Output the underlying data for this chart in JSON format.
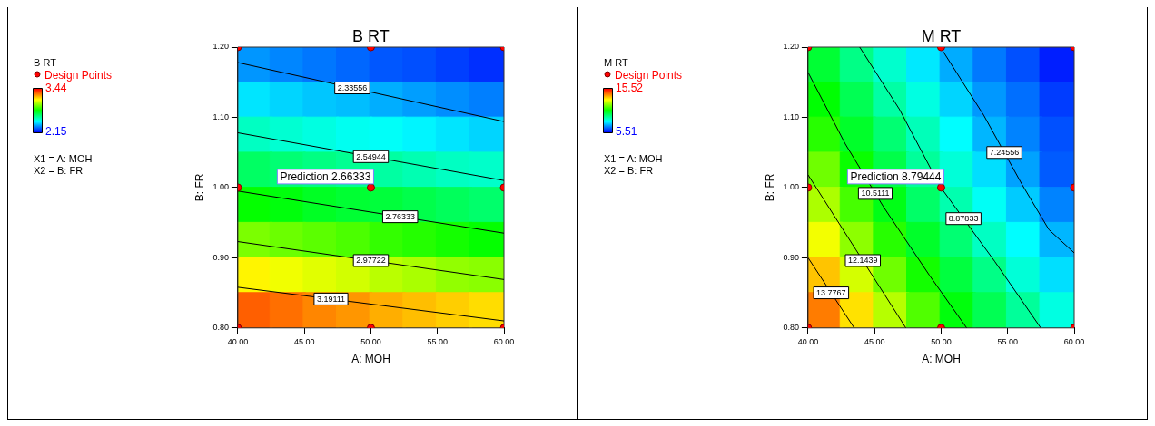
{
  "chart_data": [
    {
      "type": "scatter",
      "title": "B RT",
      "xlabel": "A: MOH",
      "ylabel": "B: FR",
      "clabel": "B RT",
      "legend": "left",
      "grid": false,
      "xlim": [
        40,
        60
      ],
      "ylim": [
        0.8,
        1.2
      ],
      "xticks": [
        {
          "value": 40,
          "label": "40.00"
        },
        {
          "value": 45,
          "label": "45.00"
        },
        {
          "value": 50,
          "label": "50.00"
        },
        {
          "value": 55,
          "label": "55.00"
        },
        {
          "value": 60,
          "label": "60.00"
        }
      ],
      "yticks": [
        {
          "value": 0.8,
          "label": "0.80"
        },
        {
          "value": 0.9,
          "label": "0.90"
        },
        {
          "value": 1.0,
          "label": "1.00"
        },
        {
          "value": 1.1,
          "label": "1.10"
        },
        {
          "value": 1.2,
          "label": "1.20"
        }
      ],
      "clim": [
        2.15,
        3.44
      ],
      "cticks": [
        2.15,
        3.44
      ],
      "series": [
        {
          "type": "scatter",
          "marker": "square",
          "x": [
            41.25,
            43.75,
            46.25,
            48.75,
            51.25,
            53.75,
            56.25,
            58.75,
            41.25,
            43.75,
            46.25,
            48.75,
            51.25,
            53.75,
            56.25,
            58.75,
            41.25,
            43.75,
            46.25,
            48.75,
            51.25,
            53.75,
            56.25,
            58.75,
            41.25,
            43.75,
            46.25,
            48.75,
            51.25,
            53.75,
            56.25,
            58.75,
            41.25,
            43.75,
            46.25,
            48.75,
            51.25,
            53.75,
            56.25,
            58.75,
            41.25,
            43.75,
            46.25,
            48.75,
            51.25,
            53.75,
            56.25,
            58.75,
            41.25,
            43.75,
            46.25,
            48.75,
            51.25,
            53.75,
            56.25,
            58.75,
            41.25,
            43.75,
            46.25,
            48.75,
            51.25,
            53.75,
            56.25,
            58.75
          ],
          "values": [
            1.175,
            1.175,
            1.175,
            1.175,
            1.175,
            1.175,
            1.175,
            1.175,
            1.125,
            1.125,
            1.125,
            1.125,
            1.125,
            1.125,
            1.125,
            1.125,
            1.075,
            1.075,
            1.075,
            1.075,
            1.075,
            1.075,
            1.075,
            1.075,
            1.025,
            1.025,
            1.025,
            1.025,
            1.025,
            1.025,
            1.025,
            1.025,
            0.975,
            0.975,
            0.975,
            0.975,
            0.975,
            0.975,
            0.975,
            0.975,
            0.925,
            0.925,
            0.925,
            0.925,
            0.925,
            0.925,
            0.925,
            0.925,
            0.875,
            0.875,
            0.875,
            0.875,
            0.875,
            0.875,
            0.875,
            0.875,
            0.825,
            0.825,
            0.825,
            0.825,
            0.825,
            0.825,
            0.825,
            0.825
          ],
          "cvalues": [
            2.34,
            2.32,
            2.3,
            2.28,
            2.26,
            2.25,
            2.23,
            2.21,
            2.44,
            2.42,
            2.4,
            2.39,
            2.37,
            2.35,
            2.33,
            2.31,
            2.55,
            2.53,
            2.51,
            2.49,
            2.48,
            2.46,
            2.44,
            2.42,
            2.67,
            2.65,
            2.63,
            2.61,
            2.59,
            2.57,
            2.55,
            2.54,
            2.8,
            2.78,
            2.75,
            2.73,
            2.72,
            2.7,
            2.68,
            2.66,
            2.95,
            2.93,
            2.91,
            2.89,
            2.86,
            2.84,
            2.82,
            2.8,
            3.13,
            3.1,
            3.08,
            3.06,
            3.03,
            3.01,
            2.98,
            2.97,
            3.32,
            3.3,
            3.27,
            3.25,
            3.22,
            3.2,
            3.18,
            3.16
          ],
          "colors": [
            "#0096ff",
            "#0086ff",
            "#0077ff",
            "#0067ff",
            "#0057ff",
            "#004fff",
            "#003fff",
            "#002fff",
            "#00e5ff",
            "#00d5ff",
            "#00c6ff",
            "#00beff",
            "#00aeff",
            "#009eff",
            "#008eff",
            "#007fff",
            "#00ffc2",
            "#00ffd2",
            "#00ffe1",
            "#00fff1",
            "#00fff9",
            "#00f5ff",
            "#00e5ff",
            "#00d5ff",
            "#00ff63",
            "#00ff73",
            "#00ff83",
            "#00ff92",
            "#00ffa2",
            "#00ffb2",
            "#00ffc2",
            "#00ffca",
            "#04ff00",
            "#00ff0c",
            "#00ff24",
            "#00ff34",
            "#00ff3b",
            "#00ff4b",
            "#00ff5b",
            "#00ff6b",
            "#7bff00",
            "#6bff00",
            "#5bff00",
            "#4bff00",
            "#34ff00",
            "#24ff00",
            "#14ff00",
            "#04ff00",
            "#fff500",
            "#f1ff00",
            "#e1ff00",
            "#d2ff00",
            "#baff00",
            "#aaff00",
            "#92ff00",
            "#8aff00",
            "#ff5f00",
            "#ff6f00",
            "#ff8600",
            "#ff9600",
            "#ffae00",
            "#ffbe00",
            "#ffcd00",
            "#ffdd00"
          ]
        },
        {
          "type": "line",
          "name": "2.33556",
          "color": "#000000",
          "x": [
            40,
            60
          ],
          "values": [
            1.178,
            1.094
          ]
        },
        {
          "type": "line",
          "name": "2.54944",
          "color": "#000000",
          "x": [
            40,
            60
          ],
          "values": [
            1.078,
            1.01
          ]
        },
        {
          "type": "line",
          "name": "2.76333",
          "color": "#000000",
          "x": [
            40,
            60
          ],
          "values": [
            0.995,
            0.935
          ]
        },
        {
          "type": "line",
          "name": "2.97722",
          "color": "#000000",
          "x": [
            40,
            60
          ],
          "values": [
            0.923,
            0.869
          ]
        },
        {
          "type": "line",
          "name": "3.19111",
          "color": "#000000",
          "x": [
            40,
            60
          ],
          "values": [
            0.858,
            0.81
          ]
        },
        {
          "type": "scatter",
          "marker": "circle",
          "name": "Design Points",
          "color": "#ff0000",
          "x": [
            40,
            50,
            60,
            40,
            50,
            60,
            40,
            50,
            60
          ],
          "values": [
            1.2,
            1.2,
            1.2,
            1.0,
            1.0,
            1.0,
            0.8,
            0.8,
            0.8
          ]
        }
      ],
      "annotations": [
        {
          "text": "Prediction 2.66333",
          "x": 50,
          "y": 1.0
        },
        "X1 = A: MOH",
        "X2 = B: FR"
      ]
    },
    {
      "type": "scatter",
      "title": "M RT",
      "xlabel": "A: MOH",
      "ylabel": "B: FR",
      "clabel": "M RT",
      "legend": "left",
      "grid": false,
      "xlim": [
        40,
        60
      ],
      "ylim": [
        0.8,
        1.2
      ],
      "xticks": [
        {
          "value": 40,
          "label": "40.00"
        },
        {
          "value": 45,
          "label": "45.00"
        },
        {
          "value": 50,
          "label": "50.00"
        },
        {
          "value": 55,
          "label": "55.00"
        },
        {
          "value": 60,
          "label": "60.00"
        }
      ],
      "yticks": [
        {
          "value": 0.8,
          "label": "0.80"
        },
        {
          "value": 0.9,
          "label": "0.90"
        },
        {
          "value": 1.0,
          "label": "1.00"
        },
        {
          "value": 1.1,
          "label": "1.10"
        },
        {
          "value": 1.2,
          "label": "1.20"
        }
      ],
      "clim": [
        5.51,
        15.52
      ],
      "cticks": [
        5.51,
        15.52
      ],
      "series": [
        {
          "type": "scatter",
          "marker": "square",
          "x": [
            41.25,
            43.75,
            46.25,
            48.75,
            51.25,
            53.75,
            56.25,
            58.75,
            41.25,
            43.75,
            46.25,
            48.75,
            51.25,
            53.75,
            56.25,
            58.75,
            41.25,
            43.75,
            46.25,
            48.75,
            51.25,
            53.75,
            56.25,
            58.75,
            41.25,
            43.75,
            46.25,
            48.75,
            51.25,
            53.75,
            56.25,
            58.75,
            41.25,
            43.75,
            46.25,
            48.75,
            51.25,
            53.75,
            56.25,
            58.75,
            41.25,
            43.75,
            46.25,
            48.75,
            51.25,
            53.75,
            56.25,
            58.75,
            41.25,
            43.75,
            46.25,
            48.75,
            51.25,
            53.75,
            56.25,
            58.75,
            41.25,
            43.75,
            46.25,
            48.75,
            51.25,
            53.75,
            56.25,
            58.75
          ],
          "values": [
            1.175,
            1.175,
            1.175,
            1.175,
            1.175,
            1.175,
            1.175,
            1.175,
            1.125,
            1.125,
            1.125,
            1.125,
            1.125,
            1.125,
            1.125,
            1.125,
            1.075,
            1.075,
            1.075,
            1.075,
            1.075,
            1.075,
            1.075,
            1.075,
            1.025,
            1.025,
            1.025,
            1.025,
            1.025,
            1.025,
            1.025,
            1.025,
            0.975,
            0.975,
            0.975,
            0.975,
            0.975,
            0.975,
            0.975,
            0.975,
            0.925,
            0.925,
            0.925,
            0.925,
            0.925,
            0.925,
            0.925,
            0.925,
            0.875,
            0.875,
            0.875,
            0.875,
            0.875,
            0.875,
            0.875,
            0.875,
            0.825,
            0.825,
            0.825,
            0.825,
            0.825,
            0.825,
            0.825,
            0.825
          ],
          "cvalues": [
            10.0,
            9.2,
            8.5,
            7.8,
            7.2,
            6.7,
            6.3,
            5.8,
            10.5,
            9.7,
            8.9,
            8.3,
            7.6,
            7.0,
            6.6,
            6.1,
            10.9,
            10.1,
            9.4,
            8.7,
            8.0,
            7.3,
            6.8,
            6.3,
            11.6,
            10.6,
            9.8,
            9.0,
            8.4,
            7.7,
            7.1,
            6.4,
            12.2,
            11.2,
            10.3,
            9.5,
            8.8,
            8.1,
            7.5,
            6.8,
            12.9,
            11.9,
            10.9,
            10.1,
            9.4,
            8.6,
            8.0,
            7.3,
            13.6,
            12.6,
            11.6,
            10.7,
            9.9,
            9.2,
            8.4,
            7.7,
            14.3,
            13.3,
            12.3,
            11.3,
            10.4,
            9.7,
            9.0,
            8.3
          ],
          "colors": [
            "#00ff35",
            "#00ff86",
            "#00ffcd",
            "#00e9ff",
            "#00acff",
            "#0079ff",
            "#0051ff",
            "#001eff",
            "#02ff00",
            "#00ff53",
            "#00ffa4",
            "#00ffe2",
            "#00d5ff",
            "#0098ff",
            "#006fff",
            "#003cff",
            "#27ff00",
            "#00ff2a",
            "#00ff72",
            "#00ffb9",
            "#00feff",
            "#00b6ff",
            "#0083ff",
            "#0051ff",
            "#6fff00",
            "#09ff00",
            "#00ff49",
            "#00ff9a",
            "#00ffd8",
            "#00dfff",
            "#00a2ff",
            "#005bff",
            "#acff00",
            "#46ff00",
            "#00ff16",
            "#00ff68",
            "#00ffaf",
            "#00fff6",
            "#00cbff",
            "#0083ff",
            "#f3ff00",
            "#8dff00",
            "#27ff00",
            "#00ff2a",
            "#00ff72",
            "#00ffc3",
            "#00feff",
            "#00b6ff",
            "#ffc300",
            "#d4ff00",
            "#6fff00",
            "#13ff00",
            "#00ff3f",
            "#00ff86",
            "#00ffd8",
            "#00dfff",
            "#ff7c00",
            "#ffe200",
            "#b6ff00",
            "#50ff00",
            "#00ff0c",
            "#00ff53",
            "#00ff9a",
            "#00ffe2"
          ]
        },
        {
          "type": "line",
          "name": "13.7767",
          "color": "#000000",
          "x": [
            40,
            43.47
          ],
          "values": [
            0.9,
            0.8
          ]
        },
        {
          "type": "line",
          "name": "12.1439",
          "color": "#000000",
          "x": [
            40,
            43.61,
            47.35
          ],
          "values": [
            1.018,
            0.911,
            0.8
          ]
        },
        {
          "type": "line",
          "name": "10.5111",
          "color": "#000000",
          "x": [
            40,
            42.8,
            45.65,
            49.12,
            51.92
          ],
          "values": [
            1.164,
            1.062,
            0.973,
            0.875,
            0.8
          ]
        },
        {
          "type": "line",
          "name": "8.87833",
          "color": "#000000",
          "x": [
            43.88,
            46.88,
            49.94,
            54.02,
            57.49
          ],
          "values": [
            1.2,
            1.111,
            1.001,
            0.895,
            0.8
          ]
        },
        {
          "type": "line",
          "name": "7.24556",
          "color": "#000000",
          "x": [
            49.94,
            53.2,
            56.06,
            58.1,
            60
          ],
          "values": [
            1.2,
            1.103,
            1.005,
            0.94,
            0.907
          ]
        },
        {
          "type": "scatter",
          "marker": "circle",
          "name": "Design Points",
          "color": "#ff0000",
          "x": [
            40,
            50,
            60,
            40,
            50,
            60,
            40,
            50,
            60
          ],
          "values": [
            1.2,
            1.2,
            1.2,
            1.0,
            1.0,
            1.0,
            0.8,
            0.8,
            0.8
          ]
        }
      ],
      "annotations": [
        {
          "text": "Prediction 8.79444",
          "x": 50,
          "y": 1.0
        },
        "X1 = A: MOH",
        "X2 = B: FR"
      ]
    }
  ]
}
